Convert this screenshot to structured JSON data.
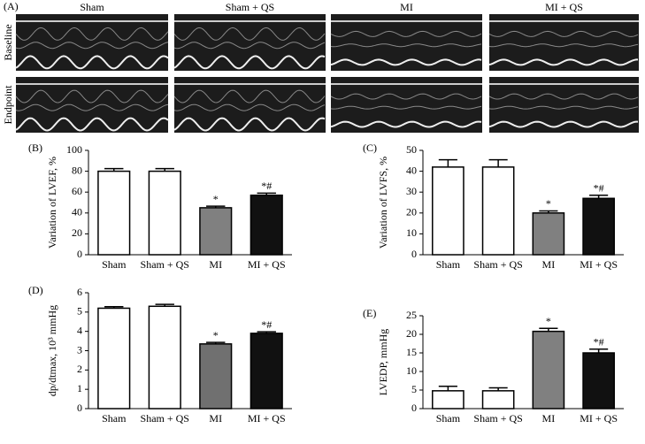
{
  "panel_a": {
    "label": "(A)",
    "columns": [
      "Sham",
      "Sham + QS",
      "MI",
      "MI + QS"
    ],
    "rows": [
      "Baseline",
      "Endpoint"
    ]
  },
  "chart_data": [
    {
      "type": "bar",
      "panel_label": "(B)",
      "y_label": "Variation of LVEF, %",
      "categories": [
        "Sham",
        "Sham + QS",
        "MI",
        "MI + QS"
      ],
      "values": [
        80,
        80,
        45,
        57
      ],
      "errors": [
        2.5,
        2.5,
        1.5,
        2
      ],
      "significance": [
        null,
        null,
        "*",
        "*#"
      ],
      "colors": [
        "#ffffff",
        "#ffffff",
        "#808080",
        "#111111"
      ],
      "ylim": [
        0,
        100
      ],
      "yticks": [
        0,
        20,
        40,
        60,
        80,
        100
      ]
    },
    {
      "type": "bar",
      "panel_label": "(C)",
      "y_label": "Variation of LVFS, %",
      "categories": [
        "Sham",
        "Sham + QS",
        "MI",
        "MI + QS"
      ],
      "values": [
        42,
        42,
        20,
        27
      ],
      "errors": [
        3.5,
        3.5,
        1,
        1.5
      ],
      "significance": [
        null,
        null,
        "*",
        "*#"
      ],
      "colors": [
        "#ffffff",
        "#ffffff",
        "#808080",
        "#111111"
      ],
      "ylim": [
        0,
        50
      ],
      "yticks": [
        0,
        10,
        20,
        30,
        40,
        50
      ]
    },
    {
      "type": "bar",
      "panel_label": "(D)",
      "y_label": "dp/dtmax, 10³ mmHg",
      "categories": [
        "Sham",
        "Sham + QS",
        "MI",
        "MI + QS"
      ],
      "values": [
        5.2,
        5.3,
        3.35,
        3.9
      ],
      "errors": [
        0.08,
        0.1,
        0.08,
        0.08
      ],
      "significance": [
        null,
        null,
        "*",
        "*#"
      ],
      "colors": [
        "#ffffff",
        "#ffffff",
        "#707070",
        "#111111"
      ],
      "ylim": [
        0,
        6
      ],
      "yticks": [
        0,
        1,
        2,
        3,
        4,
        5,
        6
      ]
    },
    {
      "type": "bar",
      "panel_label": "(E)",
      "y_label": "LVEDP, mmHg",
      "categories": [
        "Sham",
        "Sham + QS",
        "MI",
        "MI + QS"
      ],
      "values": [
        4.8,
        4.8,
        20.8,
        15
      ],
      "errors": [
        1.2,
        0.8,
        0.8,
        1
      ],
      "significance": [
        null,
        null,
        "*",
        "*#"
      ],
      "colors": [
        "#ffffff",
        "#ffffff",
        "#808080",
        "#111111"
      ],
      "ylim": [
        0,
        25
      ],
      "yticks": [
        0,
        5,
        10,
        15,
        20,
        25
      ]
    }
  ]
}
